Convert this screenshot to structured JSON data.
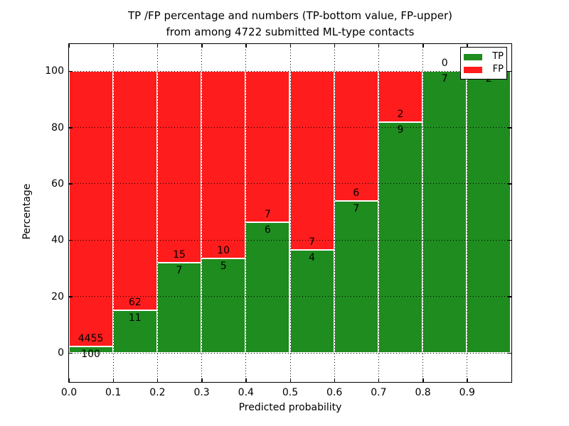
{
  "chart_data": {
    "type": "bar",
    "variant": "stacked-percentage",
    "title": "TP /FP percentage and numbers (TP-bottom value, FP-upper)\nfrom among 4722 submitted ML-type contacts",
    "title_lines": [
      "TP /FP percentage and numbers (TP-bottom value, FP-upper)",
      "from among 4722 submitted ML-type contacts"
    ],
    "xlabel": "Predicted probability",
    "ylabel": "Percentage",
    "total_contacts": 4722,
    "xlim": [
      0.0,
      1.0
    ],
    "ylim": [
      -10.3,
      109.6
    ],
    "xtick_labels": [
      "0.0",
      "0.1",
      "0.2",
      "0.3",
      "0.4",
      "0.5",
      "0.6",
      "0.7",
      "0.8",
      "0.9"
    ],
    "ytick_values": [
      0,
      20,
      40,
      60,
      80,
      100
    ],
    "grid": true,
    "legend_position": "upper right",
    "colors": {
      "tp": "#1e8c1e",
      "fp": "#ff1c1c",
      "bar_edge": "#ffffff"
    },
    "categories": [
      "0.0-0.1",
      "0.1-0.2",
      "0.2-0.3",
      "0.3-0.4",
      "0.4-0.5",
      "0.5-0.6",
      "0.6-0.7",
      "0.7-0.8",
      "0.8-0.9",
      "0.9-1.0"
    ],
    "series": [
      {
        "name": "TP",
        "color": "#1e8c1e",
        "values": [
          100,
          11,
          7,
          5,
          6,
          4,
          7,
          9,
          7,
          2
        ]
      },
      {
        "name": "FP",
        "color": "#ff1c1c",
        "values": [
          4455,
          62,
          15,
          10,
          7,
          7,
          6,
          2,
          0,
          0
        ]
      }
    ],
    "bins": [
      {
        "range": "0.0-0.1",
        "tp": 100,
        "fp": 4455,
        "tp_pct": 2.2,
        "tp_label": "100",
        "fp_label": "4455",
        "fp_label_visible": true
      },
      {
        "range": "0.1-0.2",
        "tp": 11,
        "fp": 62,
        "tp_pct": 15.1,
        "tp_label": "11",
        "fp_label": "62",
        "fp_label_visible": true
      },
      {
        "range": "0.2-0.3",
        "tp": 7,
        "fp": 15,
        "tp_pct": 31.8,
        "tp_label": "7",
        "fp_label": "15",
        "fp_label_visible": true
      },
      {
        "range": "0.3-0.4",
        "tp": 5,
        "fp": 10,
        "tp_pct": 33.3,
        "tp_label": "5",
        "fp_label": "10",
        "fp_label_visible": true
      },
      {
        "range": "0.4-0.5",
        "tp": 6,
        "fp": 7,
        "tp_pct": 46.2,
        "tp_label": "6",
        "fp_label": "7",
        "fp_label_visible": true
      },
      {
        "range": "0.5-0.6",
        "tp": 4,
        "fp": 7,
        "tp_pct": 36.4,
        "tp_label": "4",
        "fp_label": "7",
        "fp_label_visible": true
      },
      {
        "range": "0.6-0.7",
        "tp": 7,
        "fp": 6,
        "tp_pct": 53.8,
        "tp_label": "7",
        "fp_label": "6",
        "fp_label_visible": true
      },
      {
        "range": "0.7-0.8",
        "tp": 9,
        "fp": 2,
        "tp_pct": 81.8,
        "tp_label": "9",
        "fp_label": "2",
        "fp_label_visible": true
      },
      {
        "range": "0.8-0.9",
        "tp": 7,
        "fp": 0,
        "tp_pct": 100,
        "tp_label": "7",
        "fp_label": "0",
        "fp_label_visible": true
      },
      {
        "range": "0.9-1.0",
        "tp": 2,
        "fp": 0,
        "tp_pct": 100,
        "tp_label": "2",
        "fp_label": "0",
        "fp_label_visible": false
      }
    ],
    "legend": [
      {
        "label": "TP",
        "color": "#1e8c1e"
      },
      {
        "label": "FP",
        "color": "#ff1c1c"
      }
    ]
  }
}
